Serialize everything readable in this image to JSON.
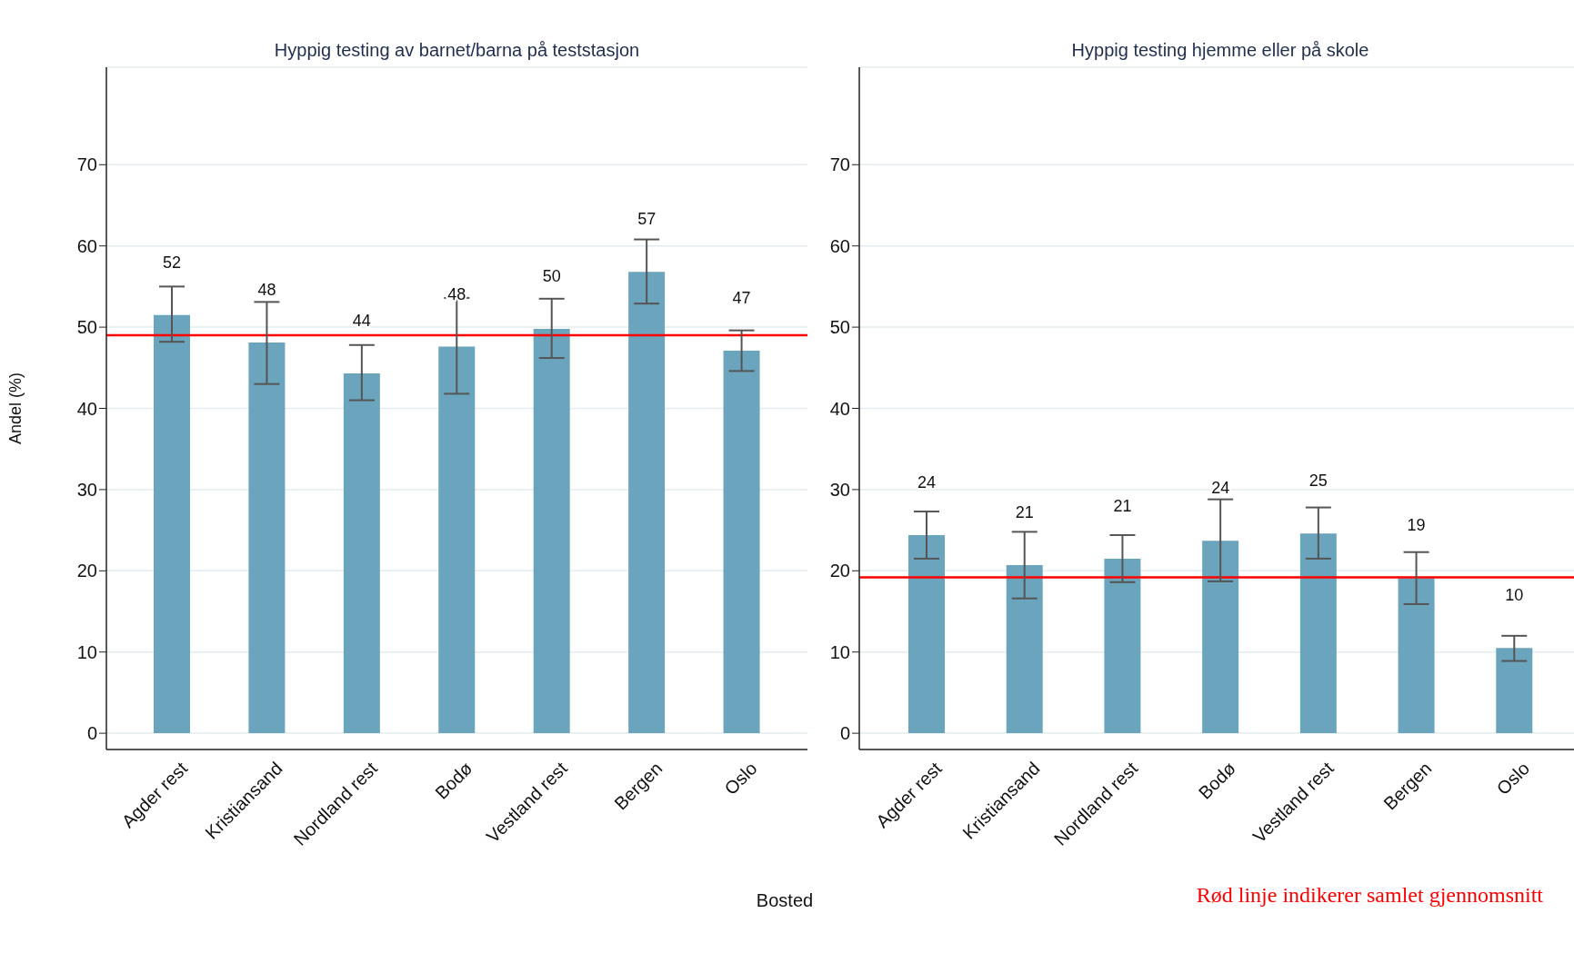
{
  "chart_data": [
    {
      "type": "bar",
      "title": "Hyppig testing av barnet/barna på teststasjon",
      "ylabel": "Andel (%)",
      "xlabel": "Bosted",
      "categories": [
        "Agder rest",
        "Kristiansand",
        "Nordland rest",
        "Bodø",
        "Vestland rest",
        "Bergen",
        "Oslo"
      ],
      "values": [
        51.5,
        48.1,
        44.3,
        47.6,
        49.8,
        56.8,
        47.1
      ],
      "value_labels": [
        "52",
        "48",
        "44",
        "48",
        "50",
        "57",
        "47"
      ],
      "errors": [
        [
          48.2,
          55.0
        ],
        [
          43.0,
          53.1
        ],
        [
          41.0,
          47.8
        ],
        [
          41.8,
          53.6
        ],
        [
          46.2,
          53.5
        ],
        [
          52.9,
          60.8
        ],
        [
          44.6,
          49.6
        ]
      ],
      "color": "#6aa5bd",
      "ylim": [
        -2,
        82
      ],
      "yticks": [
        0,
        10,
        20,
        30,
        40,
        50,
        60,
        70
      ],
      "grid": "y",
      "ref_lines": [
        {
          "axis": "y",
          "value": 49.0,
          "color": "#ff0000"
        }
      ]
    },
    {
      "type": "bar",
      "title": "Hyppig testing hjemme eller på skole",
      "categories": [
        "Agder rest",
        "Kristiansand",
        "Nordland rest",
        "Bodø",
        "Vestland rest",
        "Bergen",
        "Oslo"
      ],
      "values": [
        24.4,
        20.7,
        21.5,
        23.7,
        24.6,
        19.1,
        10.5
      ],
      "value_labels": [
        "24",
        "21",
        "21",
        "24",
        "25",
        "19",
        "10"
      ],
      "errors": [
        [
          21.5,
          27.3
        ],
        [
          16.6,
          24.8
        ],
        [
          18.6,
          24.4
        ],
        [
          18.7,
          28.8
        ],
        [
          21.5,
          27.8
        ],
        [
          15.9,
          22.3
        ],
        [
          8.9,
          12.0
        ]
      ],
      "color": "#6aa5bd",
      "ylim": [
        -2,
        82
      ],
      "yticks": [
        0,
        10,
        20,
        30,
        40,
        50,
        60,
        70
      ],
      "grid": "y",
      "ref_lines": [
        {
          "axis": "y",
          "value": 19.2,
          "color": "#ff0000"
        }
      ],
      "annotations": [
        "Rød linje indikerer samlet gjennomsnitt"
      ]
    }
  ]
}
